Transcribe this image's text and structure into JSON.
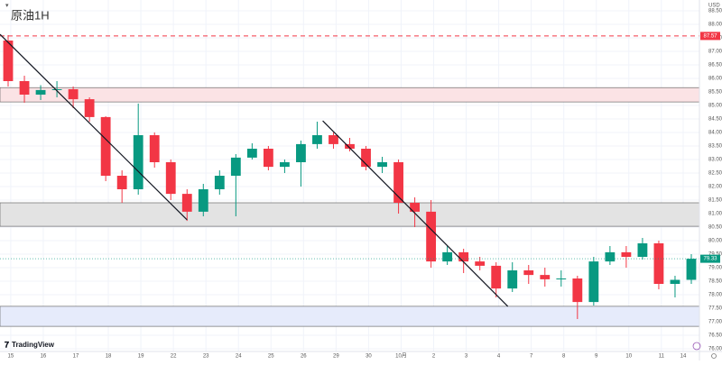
{
  "chart_data": {
    "type": "candlestick",
    "title": "原油1H",
    "currency": "USD",
    "brand": "TradingView",
    "x": [
      0.25,
      0.75,
      1.25,
      1.75,
      2.25,
      2.75,
      3.25,
      3.75,
      4.25,
      4.75,
      5.25,
      5.75,
      6.25,
      6.75,
      7.25,
      7.75,
      8.25,
      8.75,
      9.25,
      9.75,
      10.25,
      10.75,
      11.25,
      11.75,
      12.25,
      12.75,
      13.25,
      13.75,
      14.25,
      14.75,
      15.25,
      15.75,
      16.25,
      16.75,
      17.25,
      17.75,
      18.25,
      18.75,
      19.25,
      19.75,
      20.25,
      20.75,
      21.25
    ],
    "open": [
      87.4,
      85.9,
      85.4,
      85.57,
      85.6,
      85.23,
      84.57,
      82.4,
      81.9,
      83.9,
      82.9,
      81.73,
      81.07,
      81.9,
      82.4,
      83.07,
      83.4,
      82.73,
      82.9,
      83.57,
      83.9,
      83.57,
      83.4,
      82.73,
      82.9,
      81.4,
      81.07,
      79.23,
      79.57,
      79.23,
      79.07,
      78.23,
      78.9,
      78.73,
      78.57,
      78.6,
      77.73,
      79.23,
      79.57,
      79.4,
      79.9,
      78.4,
      78.55
    ],
    "high": [
      87.6,
      86.1,
      85.75,
      85.9,
      85.7,
      85.3,
      84.6,
      82.6,
      85.07,
      84.0,
      83.0,
      81.9,
      82.1,
      82.6,
      83.2,
      83.6,
      83.5,
      83.0,
      83.7,
      84.4,
      84.0,
      83.8,
      83.5,
      83.1,
      83.0,
      81.6,
      81.5,
      79.8,
      79.7,
      79.4,
      79.2,
      79.2,
      79.1,
      79.0,
      78.9,
      78.7,
      79.4,
      79.8,
      79.8,
      80.1,
      80.0,
      78.7,
      79.5
    ],
    "low": [
      85.7,
      85.1,
      85.2,
      85.3,
      84.9,
      84.4,
      82.2,
      81.4,
      81.7,
      82.7,
      81.5,
      80.73,
      80.9,
      81.7,
      80.9,
      83.0,
      82.6,
      82.5,
      82.0,
      83.4,
      83.4,
      83.3,
      82.6,
      82.5,
      81.0,
      80.5,
      79.0,
      79.1,
      78.8,
      78.9,
      77.9,
      78.1,
      78.4,
      78.3,
      78.3,
      77.1,
      77.6,
      79.1,
      79.0,
      79.3,
      78.2,
      77.9,
      78.4
    ],
    "close": [
      85.9,
      85.4,
      85.57,
      85.6,
      85.23,
      84.57,
      82.4,
      81.9,
      83.9,
      82.9,
      81.73,
      81.07,
      81.9,
      82.4,
      83.07,
      83.4,
      82.73,
      82.9,
      83.57,
      83.9,
      83.57,
      83.4,
      82.73,
      82.9,
      81.4,
      81.07,
      79.23,
      79.57,
      79.23,
      79.07,
      78.23,
      78.9,
      78.73,
      78.57,
      78.6,
      77.73,
      79.23,
      79.57,
      79.4,
      79.9,
      78.4,
      78.55,
      79.33
    ],
    "up_color": "#089981",
    "down_color": "#f23645",
    "xlim": [
      0,
      21.5
    ],
    "xticks": [
      {
        "value": 0.33,
        "label": "15"
      },
      {
        "value": 1.33,
        "label": "16"
      },
      {
        "value": 2.33,
        "label": "17"
      },
      {
        "value": 3.33,
        "label": "18"
      },
      {
        "value": 4.33,
        "label": "19"
      },
      {
        "value": 5.33,
        "label": "22"
      },
      {
        "value": 6.33,
        "label": "23"
      },
      {
        "value": 7.33,
        "label": "24"
      },
      {
        "value": 8.33,
        "label": "25"
      },
      {
        "value": 9.33,
        "label": "26"
      },
      {
        "value": 10.33,
        "label": "29"
      },
      {
        "value": 11.33,
        "label": "30"
      },
      {
        "value": 12.33,
        "label": "10月"
      },
      {
        "value": 13.33,
        "label": "2"
      },
      {
        "value": 14.33,
        "label": "3"
      },
      {
        "value": 15.33,
        "label": "4"
      },
      {
        "value": 16.33,
        "label": "7"
      },
      {
        "value": 17.33,
        "label": "8"
      },
      {
        "value": 18.33,
        "label": "9"
      },
      {
        "value": 19.33,
        "label": "10"
      },
      {
        "value": 20.33,
        "label": "11"
      },
      {
        "value": 21.0,
        "label": "14"
      }
    ],
    "ylim": [
      75.9,
      88.9
    ],
    "yticks": [
      {
        "value": 76,
        "label": "76.00"
      },
      {
        "value": 76.5,
        "label": "76.50"
      },
      {
        "value": 77,
        "label": "77.00"
      },
      {
        "value": 77.5,
        "label": "77.50"
      },
      {
        "value": 78,
        "label": "78.00"
      },
      {
        "value": 78.5,
        "label": "78.50"
      },
      {
        "value": 79,
        "label": "79.00"
      },
      {
        "value": 79.5,
        "label": "79.50"
      },
      {
        "value": 80,
        "label": "80.00"
      },
      {
        "value": 80.5,
        "label": "80.50"
      },
      {
        "value": 81,
        "label": "81.00"
      },
      {
        "value": 81.5,
        "label": "81.50"
      },
      {
        "value": 82,
        "label": "82.00"
      },
      {
        "value": 82.5,
        "label": "82.50"
      },
      {
        "value": 83,
        "label": "83.00"
      },
      {
        "value": 83.5,
        "label": "83.50"
      },
      {
        "value": 84,
        "label": "84.00"
      },
      {
        "value": 84.5,
        "label": "84.50"
      },
      {
        "value": 85,
        "label": "85.00"
      },
      {
        "value": 85.5,
        "label": "85.50"
      },
      {
        "value": 86,
        "label": "86.00"
      },
      {
        "value": 86.5,
        "label": "86.50"
      },
      {
        "value": 87,
        "label": "87.00"
      },
      {
        "value": 87.5,
        "label": "87.50"
      },
      {
        "value": 88,
        "label": "88.00"
      },
      {
        "value": 88.5,
        "label": "88.50"
      }
    ],
    "grid": true,
    "zones": [
      {
        "top": 85.66,
        "bottom": 85.13,
        "color": "#fbe3e5"
      },
      {
        "top": 81.4,
        "bottom": 80.53,
        "color": "#e3e3e3"
      },
      {
        "top": 77.57,
        "bottom": 76.83,
        "color": "#e6ebfb"
      }
    ],
    "trendlines": [
      {
        "x": [
          0,
          5.75
        ],
        "y": [
          87.63,
          80.77
        ]
      },
      {
        "x": [
          9.92,
          15.61
        ],
        "y": [
          84.43,
          77.57
        ]
      }
    ],
    "price_level": {
      "value": 87.57,
      "color": "#f23645"
    }
  }
}
